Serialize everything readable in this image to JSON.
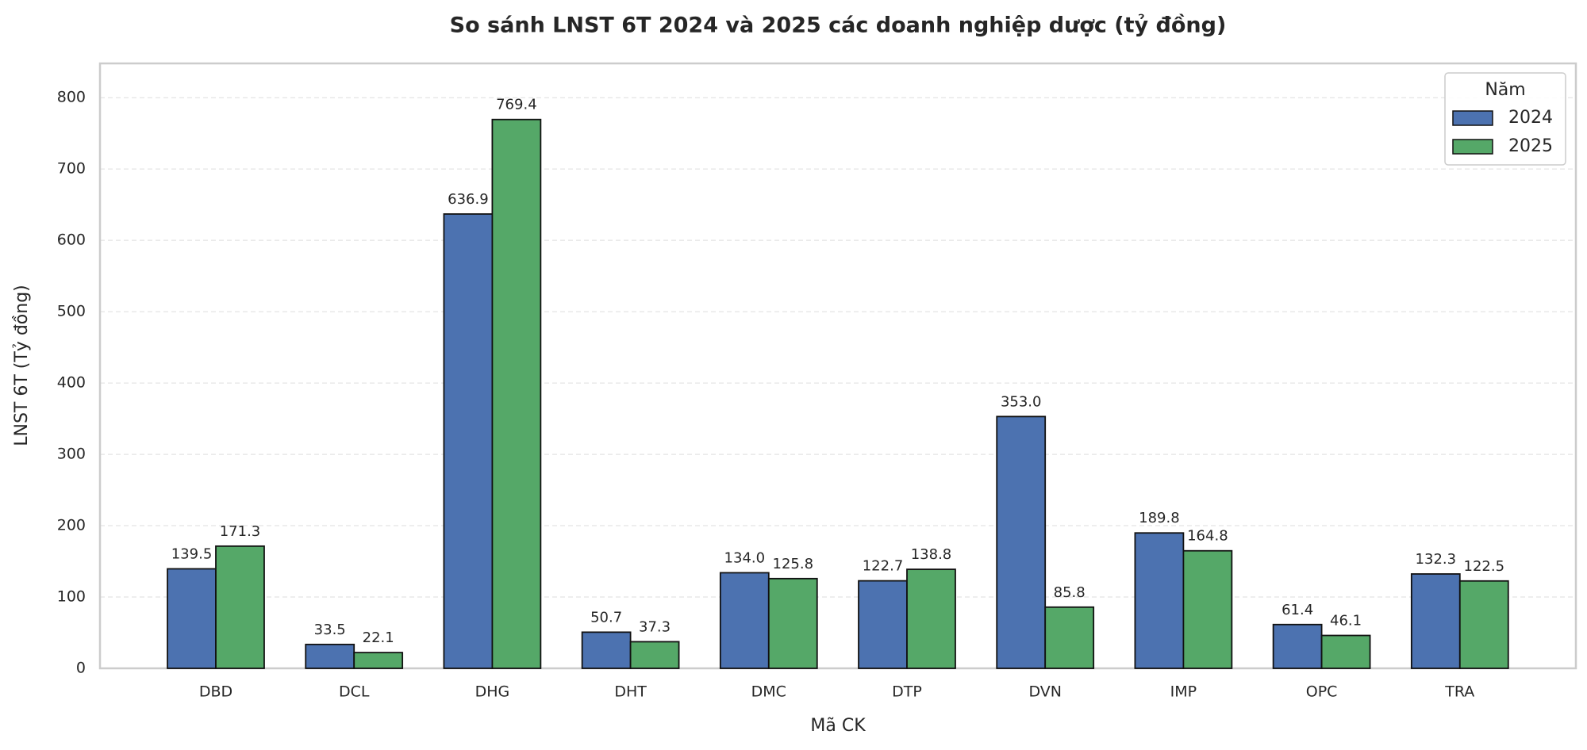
{
  "chart_data": {
    "type": "bar",
    "title": "So sánh LNST 6T 2024 và 2025 các doanh nghiệp dược (tỷ đồng)",
    "x_label": "Mã CK",
    "y_label": "LNST 6T (Tỷ đồng)",
    "categories": [
      "DBD",
      "DCL",
      "DHG",
      "DHT",
      "DMC",
      "DTP",
      "DVN",
      "IMP",
      "OPC",
      "TRA"
    ],
    "series": [
      {
        "name": "2024",
        "color": "#4c72b0",
        "values": [
          139.5,
          33.5,
          636.9,
          50.7,
          134.0,
          122.7,
          353.0,
          189.8,
          61.4,
          132.3
        ],
        "value_labels": [
          "139.5",
          "33.5",
          "636.9",
          "50.7",
          "134.0",
          "122.7",
          "353.0",
          "189.8",
          "61.4",
          "132.3"
        ]
      },
      {
        "name": "2025",
        "color": "#55a868",
        "values": [
          171.3,
          22.1,
          769.4,
          37.3,
          125.8,
          138.8,
          85.8,
          164.8,
          46.1,
          122.5
        ],
        "value_labels": [
          "171.3",
          "22.1",
          "769.4",
          "37.3",
          "125.8",
          "138.8",
          "85.8",
          "164.8",
          "46.1",
          "122.5"
        ]
      }
    ],
    "legend_title": "Năm",
    "legend_position": "upper right",
    "ylim": [
      0,
      848
    ],
    "yticks": [
      0,
      100,
      200,
      300,
      400,
      500,
      600,
      700,
      800
    ],
    "grid": true
  }
}
